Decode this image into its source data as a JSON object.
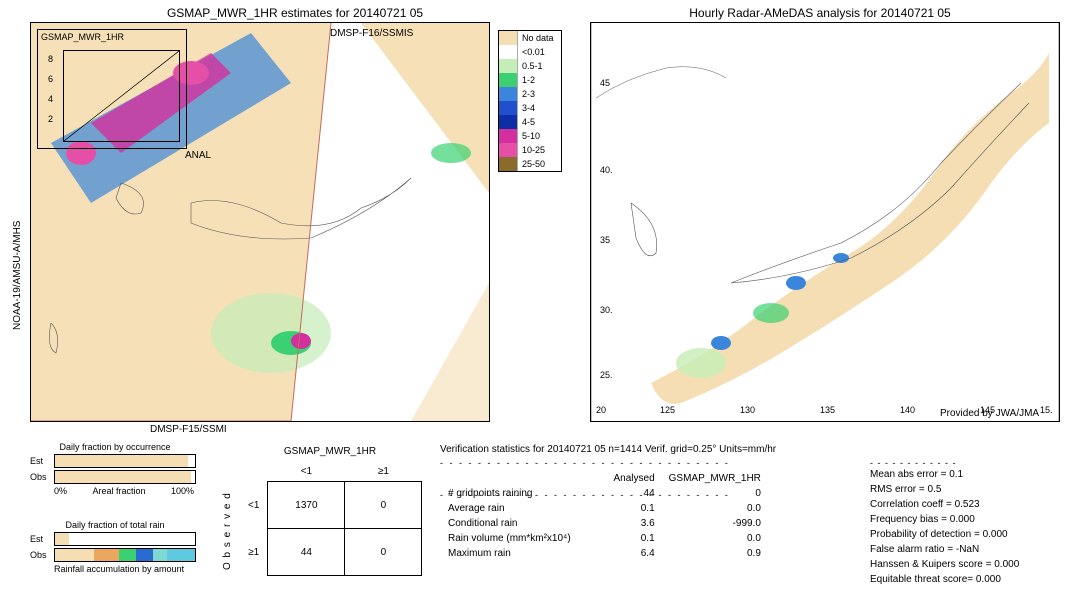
{
  "leftMap": {
    "title": "GSMAP_MWR_1HR estimates for 20140721 05",
    "insetLabel": "GSMAP_MWR_1HR",
    "analLabel": "ANAL",
    "satTop": "DMSP-F16/SSMIS",
    "satBottom": "DMSP-F15/SSMI",
    "satLeft": "NOAA-19/AMSU-A/MHS",
    "insetYticks": [
      "2",
      "4",
      "6",
      "8"
    ]
  },
  "rightMap": {
    "title": "Hourly Radar-AMeDAS analysis for 20140721 05",
    "xticks": [
      "120",
      "125",
      "130",
      "135",
      "140",
      "145"
    ],
    "yticks": [
      "20",
      "25",
      "30",
      "35",
      "40",
      "45"
    ],
    "credit": "Provided by JWA/JMA"
  },
  "colorbar": {
    "items": [
      {
        "label": "No data",
        "color": "#f5deb3"
      },
      {
        "label": "<0.01",
        "color": "#ffffff"
      },
      {
        "label": "0.5-1",
        "color": "#c5edb7"
      },
      {
        "label": "1-2",
        "color": "#3bd172"
      },
      {
        "label": "2-3",
        "color": "#3b86da"
      },
      {
        "label": "3-4",
        "color": "#2150cf"
      },
      {
        "label": "4-5",
        "color": "#0d2ea6"
      },
      {
        "label": "5-10",
        "color": "#d32f9e"
      },
      {
        "label": "10-25",
        "color": "#e64fa7"
      },
      {
        "label": "25-50",
        "color": "#8b6b2a"
      }
    ]
  },
  "occurrenceChart": {
    "title": "Daily fraction by occurrence",
    "xLeft": "0%",
    "xRight": "100%",
    "axisLabel": "Areal fraction",
    "rows": [
      {
        "label": "Est",
        "fill": 95,
        "color": "#f5deb3"
      },
      {
        "label": "Obs",
        "fill": 97,
        "color": "#f5deb3"
      }
    ]
  },
  "totalRainChart": {
    "title": "Daily fraction of total rain",
    "axisLabel": "Rainfall accumulation by amount",
    "rows": [
      {
        "label": "Est",
        "segments": [
          {
            "w": 10,
            "c": "#f5deb3"
          }
        ]
      },
      {
        "label": "Obs",
        "segments": [
          {
            "w": 28,
            "c": "#f5deb3"
          },
          {
            "w": 18,
            "c": "#eda65e"
          },
          {
            "w": 12,
            "c": "#3bd172"
          },
          {
            "w": 12,
            "c": "#2a6bd1"
          },
          {
            "w": 10,
            "c": "#7fd8d2"
          },
          {
            "w": 20,
            "c": "#5fc9e0"
          }
        ]
      }
    ]
  },
  "contingency": {
    "title": "GSMAP_MWR_1HR",
    "sideLabel": "Observed",
    "colHeaders": [
      "<1",
      "≥1"
    ],
    "rowHeaders": [
      "<1",
      "≥1"
    ],
    "cells": [
      [
        "1370",
        "0"
      ],
      [
        "44",
        "0"
      ]
    ]
  },
  "verifHeader": "Verification statistics for 20140721 05  n=1414  Verif. grid=0.25°  Units=mm/hr",
  "statsTable": {
    "col1": "Analysed",
    "col2": "GSMAP_MWR_1HR",
    "rows": [
      {
        "l": "# gridpoints raining",
        "a": "44",
        "b": "0"
      },
      {
        "l": "Average rain",
        "a": "0.1",
        "b": "0.0"
      },
      {
        "l": "Conditional rain",
        "a": "3.6",
        "b": "-999.0"
      },
      {
        "l": "Rain volume (mm*km²x10⁴)",
        "a": "0.1",
        "b": "0.0"
      },
      {
        "l": "Maximum rain",
        "a": "6.4",
        "b": "0.9"
      }
    ]
  },
  "scores": [
    "Mean abs error = 0.1",
    "RMS error = 0.5",
    "Correlation coeff = 0.523",
    "Frequency bias = 0.000",
    "Probability of detection = 0.000",
    "False alarm ratio = -NaN",
    "Hanssen & Kuipers score = 0.000",
    "Equitable threat score= 0.000"
  ]
}
